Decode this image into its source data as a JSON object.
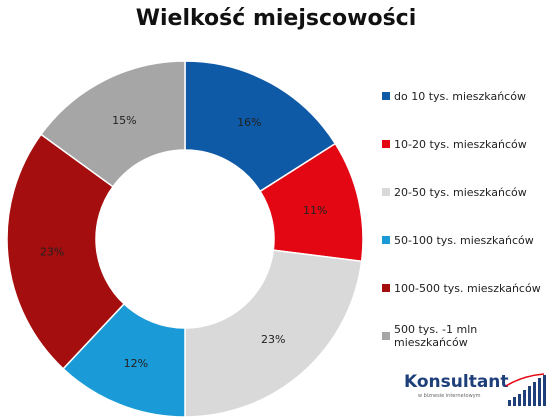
{
  "chart_data": {
    "type": "pie",
    "title": "Wielkość miejscowości",
    "categories": [
      "do 10 tys. mieszkańców",
      "10-20 tys. mieszkańców",
      "20-50 tys. mieszkańców",
      "50-100 tys. mieszkańców",
      "100-500 tys. mieszkańców",
      "500 tys. -1 mln mieszkańców"
    ],
    "values": [
      16,
      11,
      23,
      12,
      23,
      15
    ],
    "labels": [
      "16%",
      "11%",
      "23%",
      "12%",
      "23%",
      "15%"
    ],
    "colors": [
      "#0f5aa6",
      "#e30613",
      "#d9d9d9",
      "#1a9ad6",
      "#a50e0e",
      "#a6a6a6"
    ],
    "donut": true,
    "legend_position": "right"
  },
  "logo": {
    "name": "Konsultant",
    "tagline": "w biznesie internetowym"
  }
}
